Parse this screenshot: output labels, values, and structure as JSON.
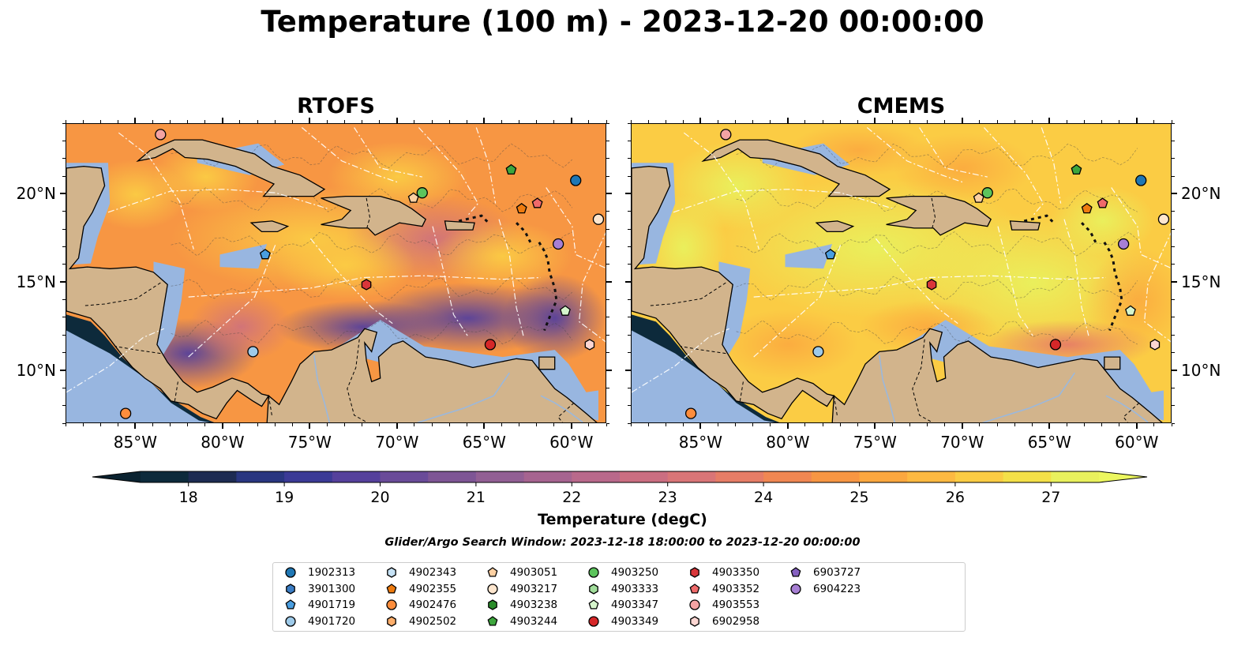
{
  "title": "Temperature (100 m) - 2023-12-20 00:00:00",
  "panels": [
    {
      "title": "RTOFS",
      "style": "rtofs"
    },
    {
      "title": "CMEMS",
      "style": "cmems"
    }
  ],
  "map": {
    "lon_range": [
      -89,
      -58
    ],
    "lat_range": [
      7,
      24
    ],
    "lon_ticks": [
      "85°W",
      "80°W",
      "75°W",
      "70°W",
      "65°W",
      "60°W"
    ],
    "lon_tick_values": [
      -85,
      -80,
      -75,
      -70,
      -65,
      -60
    ],
    "lat_ticks": [
      "20°N",
      "15°N",
      "10°N"
    ],
    "lat_tick_values": [
      20,
      15,
      10
    ],
    "colors": {
      "land": "#d2b48c",
      "shallow_water": "#98b6e0",
      "deep_ocean": "#0d2a3b"
    }
  },
  "colorbar": {
    "title": "Temperature (degC)",
    "tick_labels": [
      "18",
      "19",
      "20",
      "21",
      "22",
      "23",
      "24",
      "25",
      "26",
      "27"
    ],
    "tick_values": [
      18,
      19,
      20,
      21,
      22,
      23,
      24,
      25,
      26,
      27
    ],
    "range": [
      17.5,
      27.5
    ],
    "step": 0.5,
    "extend": "both",
    "colormap": "thermal",
    "colors": [
      "#0d2a3b",
      "#1d2b52",
      "#293680",
      "#3b3a96",
      "#55409c",
      "#6a4b99",
      "#7e5595",
      "#925f94",
      "#a66490",
      "#b9698b",
      "#cb6e81",
      "#d97577",
      "#e67d66",
      "#f08752",
      "#f79643",
      "#fba73f",
      "#fdb941",
      "#fbcc44",
      "#f4e048",
      "#e9f15d"
    ]
  },
  "search_window": "Glider/Argo Search Window: 2023-12-18 18:00:00 to 2023-12-20 00:00:00",
  "legend": [
    {
      "id": "1902313",
      "marker": "circle",
      "color": "#1f77b4"
    },
    {
      "id": "3901300",
      "marker": "hexagon",
      "color": "#3b7dc4"
    },
    {
      "id": "4901719",
      "marker": "pentagon",
      "color": "#4a9ee0"
    },
    {
      "id": "4901720",
      "marker": "circle",
      "color": "#9ecae9"
    },
    {
      "id": "4902343",
      "marker": "hexagon",
      "color": "#c6e2f5"
    },
    {
      "id": "4902355",
      "marker": "pentagon",
      "color": "#ee7b0f"
    },
    {
      "id": "4902476",
      "marker": "circle",
      "color": "#fd8d3c"
    },
    {
      "id": "4902502",
      "marker": "hexagon",
      "color": "#fdae6b"
    },
    {
      "id": "4903051",
      "marker": "pentagon",
      "color": "#fdd0a2"
    },
    {
      "id": "4903217",
      "marker": "circle",
      "color": "#fee6ce"
    },
    {
      "id": "4903238",
      "marker": "hexagon",
      "color": "#2a8c2a"
    },
    {
      "id": "4903244",
      "marker": "pentagon",
      "color": "#3da63d"
    },
    {
      "id": "4903250",
      "marker": "circle",
      "color": "#5cc45c"
    },
    {
      "id": "4903333",
      "marker": "hexagon",
      "color": "#a1dd9b"
    },
    {
      "id": "4903347",
      "marker": "pentagon",
      "color": "#d6f5cc"
    },
    {
      "id": "4903349",
      "marker": "circle",
      "color": "#d62728"
    },
    {
      "id": "4903350",
      "marker": "hexagon",
      "color": "#d9363a"
    },
    {
      "id": "4903352",
      "marker": "pentagon",
      "color": "#ef6a6a"
    },
    {
      "id": "4903553",
      "marker": "circle",
      "color": "#f4a3a3"
    },
    {
      "id": "6902958",
      "marker": "hexagon",
      "color": "#fcd6d2"
    },
    {
      "id": "6903727",
      "marker": "pentagon",
      "color": "#8560c0"
    },
    {
      "id": "6904223",
      "marker": "circle",
      "color": "#a77fd4"
    }
  ],
  "floats": [
    {
      "id": "1902313",
      "lon": -59.8,
      "lat": 20.8
    },
    {
      "id": "4901719",
      "lon": -77.6,
      "lat": 16.6
    },
    {
      "id": "4901720",
      "lon": -78.3,
      "lat": 11.1
    },
    {
      "id": "4902476",
      "lon": -85.6,
      "lat": 7.6
    },
    {
      "id": "4902355",
      "lon": -62.9,
      "lat": 19.2
    },
    {
      "id": "4903051",
      "lon": -69.1,
      "lat": 19.8
    },
    {
      "id": "4903217",
      "lon": -58.5,
      "lat": 18.6
    },
    {
      "id": "4903244",
      "lon": -63.5,
      "lat": 21.4
    },
    {
      "id": "4903250",
      "lon": -68.6,
      "lat": 20.1
    },
    {
      "id": "4903347",
      "lon": -60.4,
      "lat": 13.4
    },
    {
      "id": "4903349",
      "lon": -64.7,
      "lat": 11.5
    },
    {
      "id": "4903350",
      "lon": -71.8,
      "lat": 14.9
    },
    {
      "id": "4903352",
      "lon": -62.0,
      "lat": 19.5
    },
    {
      "id": "4903553",
      "lon": -83.6,
      "lat": 23.4
    },
    {
      "id": "6902958",
      "lon": -59.0,
      "lat": 11.5
    },
    {
      "id": "6904223",
      "lon": -60.8,
      "lat": 17.2
    }
  ]
}
